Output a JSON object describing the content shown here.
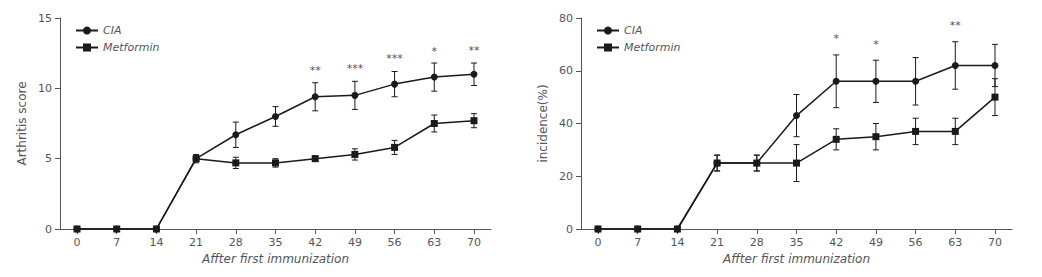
{
  "chart_data": [
    {
      "type": "line",
      "xlabel": "Affter first immunization",
      "ylabel": "Arthritis score",
      "x": [
        0,
        7,
        14,
        21,
        28,
        35,
        42,
        49,
        56,
        63,
        70
      ],
      "xlim": [
        -3,
        73
      ],
      "xticks": [
        0,
        7,
        14,
        21,
        28,
        35,
        42,
        49,
        56,
        63,
        70
      ],
      "ylim": [
        0,
        15
      ],
      "yticks": [
        0,
        5,
        10,
        15
      ],
      "grid": false,
      "legend": "upper left",
      "series": [
        {
          "name": "CIA",
          "color": "#1a1a1a",
          "marker": "circle",
          "values": [
            0,
            0,
            0,
            5.0,
            6.7,
            8.0,
            9.4,
            9.5,
            10.3,
            10.8,
            11.0
          ],
          "errors": [
            0,
            0,
            0,
            0.3,
            0.9,
            0.7,
            1.0,
            1.0,
            0.9,
            1.0,
            0.8
          ]
        },
        {
          "name": "Metformin",
          "color": "#1a1a1a",
          "marker": "square",
          "values": [
            0,
            0,
            0,
            5.0,
            4.7,
            4.7,
            5.0,
            5.3,
            5.8,
            7.5,
            7.7
          ],
          "errors": [
            0,
            0,
            0,
            0.2,
            0.4,
            0.3,
            0.2,
            0.4,
            0.5,
            0.6,
            0.5
          ]
        }
      ],
      "annotations": [
        {
          "text": "**",
          "x": 42,
          "y": 10.9
        },
        {
          "text": "***",
          "x": 49,
          "y": 11.0
        },
        {
          "text": "***",
          "x": 56,
          "y": 11.7
        },
        {
          "text": "*",
          "x": 63,
          "y": 12.2
        },
        {
          "text": "**",
          "x": 70,
          "y": 12.3
        }
      ]
    },
    {
      "type": "line",
      "xlabel": "Affter first immunization",
      "ylabel": "incidence(%)",
      "x": [
        0,
        7,
        14,
        21,
        28,
        35,
        42,
        49,
        56,
        63,
        70
      ],
      "xlim": [
        -3,
        73
      ],
      "xticks": [
        0,
        7,
        14,
        21,
        28,
        35,
        42,
        49,
        56,
        63,
        70
      ],
      "ylim": [
        0,
        80
      ],
      "yticks": [
        0,
        20,
        40,
        60,
        80
      ],
      "grid": false,
      "legend": "upper left",
      "series": [
        {
          "name": "CIA",
          "color": "#1a1a1a",
          "marker": "circle",
          "values": [
            0,
            0,
            0,
            25,
            25,
            43,
            56,
            56,
            56,
            62,
            62
          ],
          "errors": [
            0,
            0,
            0,
            3,
            3,
            8,
            10,
            8,
            9,
            9,
            8
          ]
        },
        {
          "name": "Metformin",
          "color": "#1a1a1a",
          "marker": "square",
          "values": [
            0,
            0,
            0,
            25,
            25,
            25,
            34,
            35,
            37,
            37,
            50
          ],
          "errors": [
            0,
            0,
            0,
            3,
            3,
            7,
            4,
            5,
            5,
            5,
            7
          ]
        }
      ],
      "annotations": [
        {
          "text": "*",
          "x": 42,
          "y": 70
        },
        {
          "text": "*",
          "x": 49,
          "y": 68
        },
        {
          "text": "**",
          "x": 63,
          "y": 75
        }
      ]
    }
  ]
}
